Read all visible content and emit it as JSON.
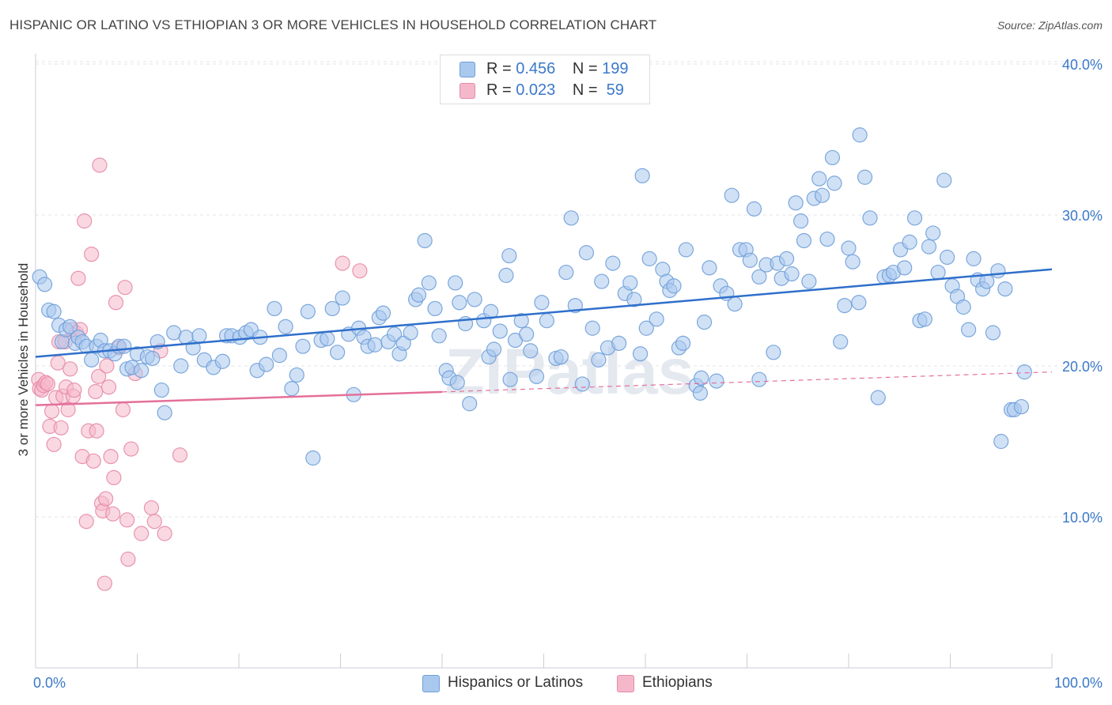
{
  "title": "HISPANIC OR LATINO VS ETHIOPIAN 3 OR MORE VEHICLES IN HOUSEHOLD CORRELATION CHART",
  "source": "Source: ZipAtlas.com",
  "watermark": "ZIPatlas",
  "legend": {
    "rows": [
      {
        "r_label": "R = ",
        "r_value": "0.456",
        "n_label": "N = ",
        "n_value": "199",
        "color": "#a9c8ee",
        "border": "#6f9fd8"
      },
      {
        "r_label": "R = ",
        "r_value": "0.023",
        "n_label": "N = ",
        "n_value": " 59",
        "color": "#f5b8cb",
        "border": "#e58aa7"
      }
    ]
  },
  "bottom_legend": [
    "Hispanics or Latinos",
    "Ethiopians"
  ],
  "colors": {
    "blue_fill": "#a9c8ee",
    "blue_stroke": "#6f9fd8",
    "blue_line": "#2f6fcb",
    "pink_fill": "#f5b8cb",
    "pink_stroke": "#e58aa7",
    "pink_line": "#e4709a",
    "axis_label": "#3a78c9"
  },
  "chart_data": {
    "type": "scatter",
    "title": "HISPANIC OR LATINO VS ETHIOPIAN 3 OR MORE VEHICLES IN HOUSEHOLD CORRELATION CHART",
    "xlabel": "",
    "ylabel": "3 or more Vehicles in Household",
    "xlim": [
      0,
      100
    ],
    "ylim": [
      0,
      42
    ],
    "x_tick_labels": [
      "0.0%",
      "100.0%"
    ],
    "y_ticks": [
      10,
      20,
      30,
      40
    ],
    "y_tick_labels": [
      "10.0%",
      "20.0%",
      "30.0%",
      "40.0%"
    ],
    "grid": "horizontal dashed",
    "legend_position": "top-center",
    "series": [
      {
        "name": "Hispanics or Latinos",
        "R": 0.456,
        "N": 199,
        "trend": {
          "x": [
            0,
            100
          ],
          "y": [
            20.6,
            26.4
          ],
          "style": "solid"
        },
        "points": [
          [
            0.4,
            25.9
          ],
          [
            0.9,
            25.4
          ],
          [
            1.3,
            23.7
          ],
          [
            1.8,
            23.6
          ],
          [
            2.3,
            22.7
          ],
          [
            2.6,
            21.6
          ],
          [
            3.0,
            22.4
          ],
          [
            3.4,
            22.6
          ],
          [
            3.9,
            21.5
          ],
          [
            4.2,
            21.9
          ],
          [
            4.6,
            21.6
          ],
          [
            5.0,
            21.3
          ],
          [
            5.5,
            20.4
          ],
          [
            6.0,
            21.3
          ],
          [
            6.4,
            21.7
          ],
          [
            6.8,
            21.0
          ],
          [
            7.3,
            21.0
          ],
          [
            7.8,
            20.8
          ],
          [
            8.2,
            21.3
          ],
          [
            8.7,
            21.3
          ],
          [
            9.0,
            19.8
          ],
          [
            9.5,
            19.9
          ],
          [
            10.0,
            20.8
          ],
          [
            10.4,
            19.7
          ],
          [
            11.0,
            20.6
          ],
          [
            11.5,
            20.5
          ],
          [
            12.0,
            21.6
          ],
          [
            12.4,
            18.4
          ],
          [
            12.7,
            16.9
          ],
          [
            13.6,
            22.2
          ],
          [
            14.3,
            20.0
          ],
          [
            14.8,
            21.9
          ],
          [
            15.5,
            21.2
          ],
          [
            16.1,
            22.0
          ],
          [
            16.6,
            20.4
          ],
          [
            17.5,
            19.9
          ],
          [
            18.4,
            20.3
          ],
          [
            18.8,
            22.0
          ],
          [
            19.3,
            22.0
          ],
          [
            20.1,
            21.9
          ],
          [
            20.7,
            22.2
          ],
          [
            21.2,
            22.4
          ],
          [
            21.8,
            19.7
          ],
          [
            22.1,
            21.9
          ],
          [
            22.7,
            20.1
          ],
          [
            23.5,
            23.8
          ],
          [
            24.0,
            20.7
          ],
          [
            24.6,
            22.6
          ],
          [
            25.2,
            18.5
          ],
          [
            25.7,
            19.4
          ],
          [
            26.3,
            21.3
          ],
          [
            26.8,
            23.6
          ],
          [
            27.3,
            13.9
          ],
          [
            28.1,
            21.7
          ],
          [
            28.7,
            21.8
          ],
          [
            29.2,
            23.8
          ],
          [
            29.7,
            20.9
          ],
          [
            30.2,
            24.5
          ],
          [
            30.8,
            22.1
          ],
          [
            31.3,
            18.1
          ],
          [
            31.8,
            22.5
          ],
          [
            32.3,
            21.9
          ],
          [
            32.7,
            21.3
          ],
          [
            33.4,
            21.4
          ],
          [
            33.8,
            23.2
          ],
          [
            34.2,
            23.5
          ],
          [
            34.7,
            21.6
          ],
          [
            35.3,
            22.1
          ],
          [
            35.8,
            20.8
          ],
          [
            36.2,
            21.5
          ],
          [
            36.9,
            22.2
          ],
          [
            37.4,
            24.4
          ],
          [
            37.7,
            24.7
          ],
          [
            38.3,
            28.3
          ],
          [
            38.7,
            25.5
          ],
          [
            39.3,
            23.8
          ],
          [
            39.7,
            22.0
          ],
          [
            40.4,
            19.7
          ],
          [
            40.7,
            19.2
          ],
          [
            41.3,
            25.5
          ],
          [
            41.7,
            24.2
          ],
          [
            42.3,
            22.8
          ],
          [
            42.7,
            17.5
          ],
          [
            43.2,
            24.4
          ],
          [
            44.1,
            23.0
          ],
          [
            44.6,
            20.6
          ],
          [
            45.1,
            21.1
          ],
          [
            45.7,
            22.3
          ],
          [
            46.3,
            26.0
          ],
          [
            46.7,
            19.1
          ],
          [
            47.2,
            21.7
          ],
          [
            47.8,
            23.0
          ],
          [
            48.3,
            22.1
          ],
          [
            48.7,
            21.0
          ],
          [
            49.3,
            19.3
          ],
          [
            49.8,
            24.2
          ],
          [
            50.3,
            23.0
          ],
          [
            51.2,
            20.5
          ],
          [
            51.7,
            20.6
          ],
          [
            52.2,
            26.2
          ],
          [
            52.7,
            29.8
          ],
          [
            53.1,
            24.0
          ],
          [
            53.8,
            18.8
          ],
          [
            54.2,
            27.5
          ],
          [
            54.8,
            22.5
          ],
          [
            55.4,
            20.4
          ],
          [
            55.7,
            25.6
          ],
          [
            56.3,
            21.2
          ],
          [
            56.8,
            26.8
          ],
          [
            57.4,
            21.5
          ],
          [
            58.0,
            24.8
          ],
          [
            58.5,
            25.5
          ],
          [
            58.9,
            24.4
          ],
          [
            59.7,
            32.6
          ],
          [
            60.1,
            22.5
          ],
          [
            60.4,
            27.1
          ],
          [
            61.1,
            23.1
          ],
          [
            61.7,
            26.4
          ],
          [
            62.1,
            25.6
          ],
          [
            62.4,
            25.0
          ],
          [
            62.8,
            25.3
          ],
          [
            63.3,
            21.2
          ],
          [
            64.0,
            27.7
          ],
          [
            65.0,
            18.7
          ],
          [
            65.4,
            18.2
          ],
          [
            65.8,
            22.9
          ],
          [
            66.3,
            26.5
          ],
          [
            67.0,
            19.0
          ],
          [
            67.4,
            25.3
          ],
          [
            68.0,
            24.8
          ],
          [
            68.5,
            31.3
          ],
          [
            68.8,
            24.1
          ],
          [
            69.3,
            27.7
          ],
          [
            69.9,
            27.7
          ],
          [
            70.3,
            27.0
          ],
          [
            70.7,
            30.4
          ],
          [
            71.2,
            19.1
          ],
          [
            71.9,
            26.7
          ],
          [
            72.6,
            20.9
          ],
          [
            73.0,
            26.8
          ],
          [
            73.4,
            25.8
          ],
          [
            73.9,
            27.1
          ],
          [
            74.4,
            26.1
          ],
          [
            74.8,
            30.8
          ],
          [
            75.3,
            29.6
          ],
          [
            75.6,
            28.3
          ],
          [
            76.1,
            25.6
          ],
          [
            76.6,
            31.1
          ],
          [
            77.1,
            32.4
          ],
          [
            77.4,
            31.3
          ],
          [
            77.9,
            28.4
          ],
          [
            78.4,
            33.8
          ],
          [
            78.6,
            32.1
          ],
          [
            79.2,
            21.6
          ],
          [
            79.6,
            24.0
          ],
          [
            80.0,
            27.8
          ],
          [
            80.4,
            26.9
          ],
          [
            81.0,
            24.2
          ],
          [
            81.6,
            32.5
          ],
          [
            82.1,
            29.8
          ],
          [
            82.9,
            17.9
          ],
          [
            83.5,
            25.9
          ],
          [
            84.0,
            26.0
          ],
          [
            84.4,
            26.2
          ],
          [
            85.1,
            27.7
          ],
          [
            85.5,
            26.5
          ],
          [
            86.0,
            28.2
          ],
          [
            86.5,
            29.8
          ],
          [
            87.0,
            23.0
          ],
          [
            87.5,
            23.1
          ],
          [
            87.9,
            27.9
          ],
          [
            88.3,
            28.8
          ],
          [
            88.8,
            26.2
          ],
          [
            89.4,
            32.3
          ],
          [
            89.7,
            27.2
          ],
          [
            90.2,
            25.3
          ],
          [
            90.7,
            24.6
          ],
          [
            91.3,
            23.9
          ],
          [
            91.8,
            22.4
          ],
          [
            92.3,
            27.1
          ],
          [
            92.7,
            25.7
          ],
          [
            93.2,
            25.1
          ],
          [
            93.6,
            25.6
          ],
          [
            94.2,
            22.2
          ],
          [
            94.7,
            26.3
          ],
          [
            95.0,
            15.0
          ],
          [
            95.4,
            25.1
          ],
          [
            96.0,
            17.1
          ],
          [
            96.3,
            17.1
          ],
          [
            97.0,
            17.3
          ],
          [
            97.3,
            19.6
          ],
          [
            81.1,
            35.3
          ],
          [
            59.5,
            20.8
          ],
          [
            63.7,
            21.5
          ],
          [
            44.8,
            23.6
          ],
          [
            41.5,
            18.9
          ],
          [
            46.6,
            27.3
          ],
          [
            65.5,
            19.2
          ],
          [
            71.2,
            25.9
          ]
        ]
      },
      {
        "name": "Ethiopians",
        "R": 0.023,
        "N": 59,
        "trend": {
          "x": [
            0,
            100
          ],
          "y": [
            17.4,
            19.6
          ],
          "solid_until_x": 40
        },
        "points": [
          [
            0.3,
            19.1
          ],
          [
            0.4,
            18.5
          ],
          [
            0.6,
            18.4
          ],
          [
            0.8,
            18.7
          ],
          [
            1.0,
            18.9
          ],
          [
            1.2,
            18.8
          ],
          [
            1.4,
            16.0
          ],
          [
            1.6,
            17.0
          ],
          [
            1.8,
            14.8
          ],
          [
            2.0,
            17.9
          ],
          [
            2.2,
            20.2
          ],
          [
            2.3,
            21.6
          ],
          [
            2.5,
            15.9
          ],
          [
            2.7,
            18.0
          ],
          [
            2.9,
            21.6
          ],
          [
            3.0,
            18.6
          ],
          [
            3.2,
            17.1
          ],
          [
            3.4,
            19.8
          ],
          [
            3.6,
            22.4
          ],
          [
            3.7,
            18.0
          ],
          [
            3.8,
            18.4
          ],
          [
            4.0,
            22.2
          ],
          [
            4.2,
            25.8
          ],
          [
            4.4,
            22.4
          ],
          [
            4.6,
            14.0
          ],
          [
            4.8,
            29.6
          ],
          [
            5.0,
            9.7
          ],
          [
            5.2,
            15.7
          ],
          [
            5.5,
            27.4
          ],
          [
            5.7,
            13.7
          ],
          [
            5.9,
            18.3
          ],
          [
            6.0,
            15.7
          ],
          [
            6.2,
            19.3
          ],
          [
            6.3,
            33.3
          ],
          [
            6.5,
            10.9
          ],
          [
            6.6,
            10.4
          ],
          [
            6.8,
            5.6
          ],
          [
            6.9,
            11.2
          ],
          [
            7.0,
            20.0
          ],
          [
            7.2,
            18.6
          ],
          [
            7.4,
            14.0
          ],
          [
            7.6,
            10.2
          ],
          [
            7.7,
            12.6
          ],
          [
            7.9,
            24.2
          ],
          [
            8.2,
            21.2
          ],
          [
            8.6,
            17.1
          ],
          [
            8.8,
            25.2
          ],
          [
            9.0,
            9.8
          ],
          [
            9.1,
            7.2
          ],
          [
            9.4,
            14.5
          ],
          [
            9.8,
            19.5
          ],
          [
            10.4,
            8.9
          ],
          [
            11.4,
            10.6
          ],
          [
            11.7,
            9.7
          ],
          [
            12.3,
            21.0
          ],
          [
            12.7,
            8.9
          ],
          [
            14.2,
            14.1
          ],
          [
            30.2,
            26.8
          ],
          [
            31.9,
            26.3
          ]
        ]
      }
    ]
  }
}
